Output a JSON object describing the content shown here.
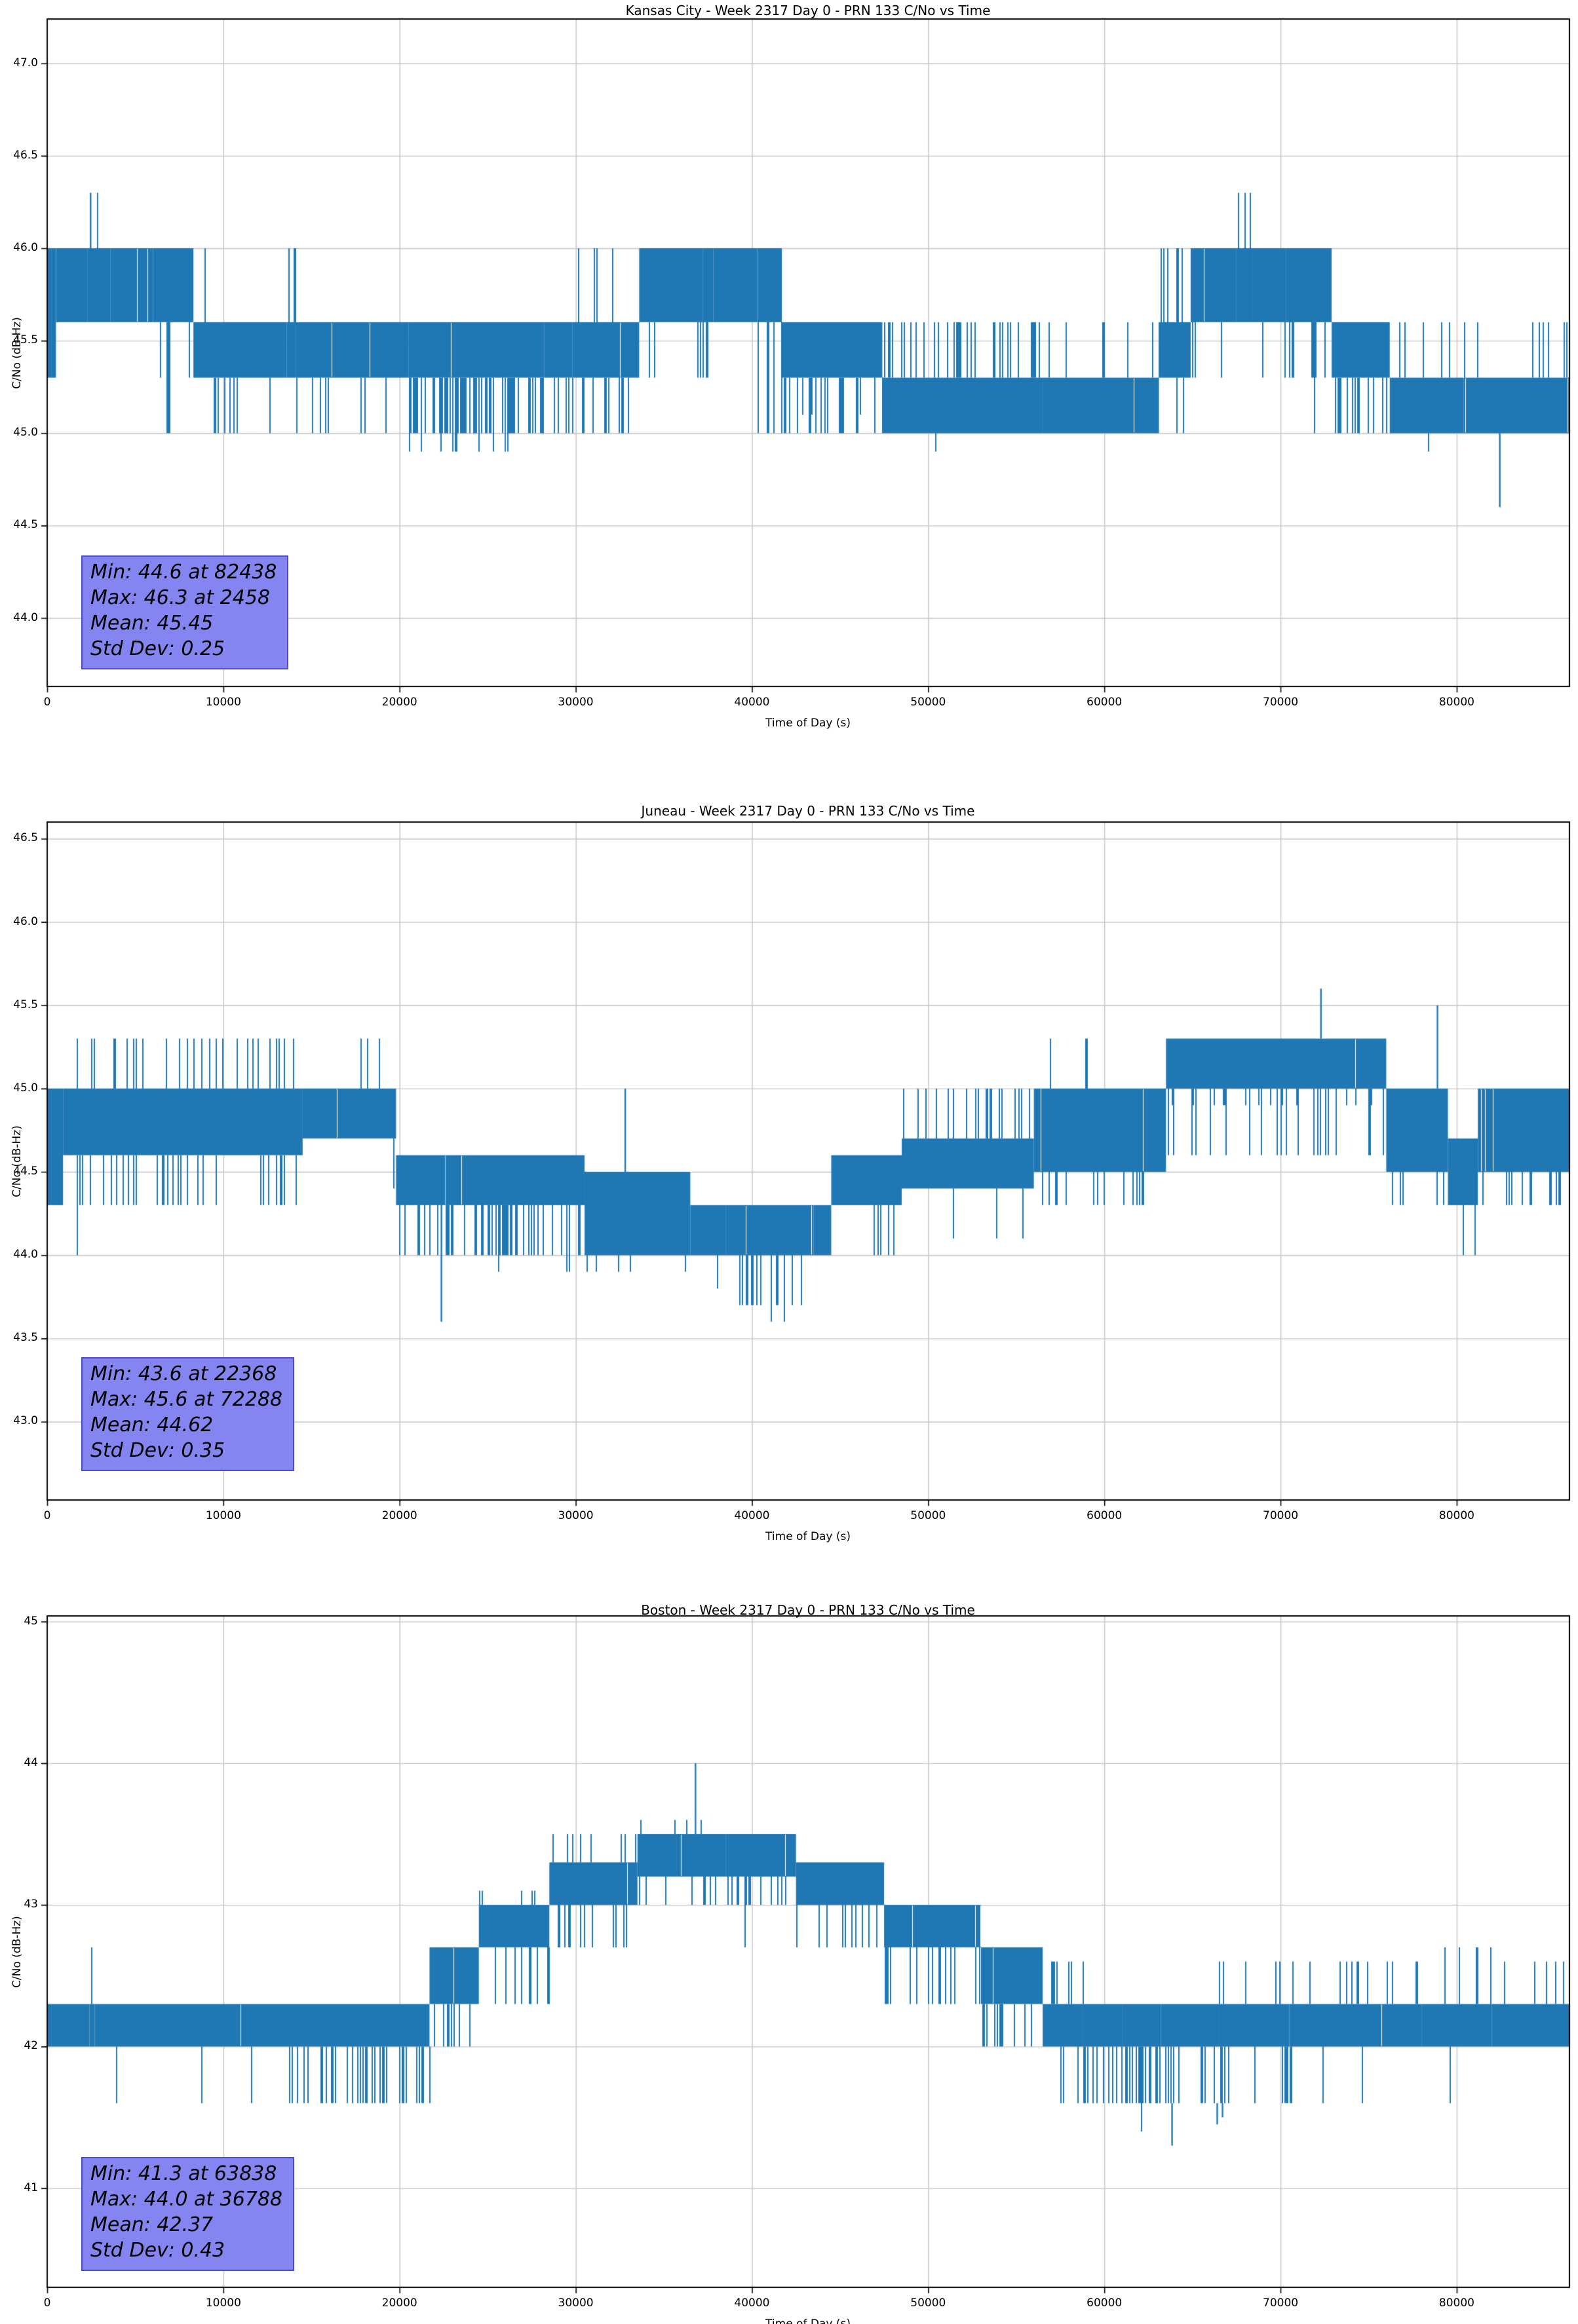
{
  "colors": {
    "line": "#1f77b4",
    "grid": "#c4c4c4",
    "spine": "#000000",
    "stats_box_bg": "#8585f2",
    "stats_box_border": "#4d4dc4",
    "text": "#000000"
  },
  "chart_data": [
    {
      "type": "line",
      "title": "Kansas City - Week 2317 Day 0 - PRN 133 C/No vs Time",
      "xlabel": "Time of Day (s)",
      "ylabel": "C/No (dB-Hz)",
      "grid": true,
      "line_color": "#1f77b4",
      "xlim": [
        0,
        86400
      ],
      "ylim": [
        43.63,
        47.24
      ],
      "xticks": [
        0,
        10000,
        20000,
        30000,
        40000,
        50000,
        60000,
        70000,
        80000
      ],
      "xtick_labels": [
        "0",
        "10000",
        "20000",
        "30000",
        "40000",
        "50000",
        "60000",
        "70000",
        "80000"
      ],
      "yticks": [
        44.0,
        44.5,
        45.0,
        45.5,
        46.0,
        46.5,
        47.0
      ],
      "ytick_labels": [
        "44.0",
        "44.5",
        "45.0",
        "45.5",
        "46.0",
        "46.5",
        "47.0"
      ],
      "stats": {
        "min": 44.6,
        "min_at": 82438,
        "max": 46.3,
        "max_at": 2458,
        "mean": 45.45,
        "std_dev": 0.25
      },
      "stats_lines": [
        "Min: 44.6 at 82438",
        "Max: 46.3 at 2458",
        "Mean: 45.45",
        "Std Dev: 0.25"
      ],
      "segments": [
        [
          0,
          500,
          45.3,
          46.0,
          []
        ],
        [
          500,
          2300,
          45.6,
          46.0,
          [
            [
              45.3,
              0.06
            ]
          ]
        ],
        [
          2300,
          3600,
          45.6,
          46.0,
          [
            [
              46.3,
              0.06
            ],
            [
              45.3,
              0.06
            ]
          ]
        ],
        [
          3600,
          6000,
          45.6,
          46.0,
          [
            [
              45.3,
              0.06
            ]
          ]
        ],
        [
          6000,
          8300,
          45.6,
          46.0,
          [
            [
              45.3,
              0.2
            ],
            [
              45.0,
              0.05
            ]
          ]
        ],
        [
          8300,
          10600,
          45.3,
          45.6,
          [
            [
              45.0,
              0.28
            ],
            [
              46.0,
              0.01
            ]
          ]
        ],
        [
          10600,
          13600,
          45.3,
          45.6,
          [
            [
              45.0,
              0.07
            ]
          ]
        ],
        [
          13600,
          14100,
          45.3,
          45.6,
          [
            [
              46.0,
              0.12
            ]
          ]
        ],
        [
          14100,
          20500,
          45.3,
          45.6,
          [
            [
              45.0,
              0.07
            ]
          ]
        ],
        [
          20500,
          28200,
          45.3,
          45.6,
          [
            [
              45.0,
              0.4
            ],
            [
              44.9,
              0.04
            ]
          ]
        ],
        [
          28200,
          29800,
          45.3,
          45.6,
          [
            [
              45.0,
              0.14
            ]
          ]
        ],
        [
          29800,
          33600,
          45.3,
          45.6,
          [
            [
              46.0,
              0.11
            ],
            [
              45.0,
              0.14
            ]
          ]
        ],
        [
          33600,
          37200,
          45.6,
          46.0,
          [
            [
              45.3,
              0.12
            ]
          ]
        ],
        [
          37200,
          37800,
          45.6,
          46.0,
          [
            [
              46.3,
              0.12
            ],
            [
              45.3,
              0.1
            ]
          ]
        ],
        [
          37800,
          40300,
          45.6,
          46.0,
          [
            [
              45.3,
              0.14
            ],
            [
              45.0,
              0.04
            ]
          ]
        ],
        [
          40300,
          41700,
          45.6,
          46.0,
          [
            [
              45.0,
              0.32
            ]
          ]
        ],
        [
          41700,
          47400,
          45.3,
          45.6,
          [
            [
              45.0,
              0.2
            ],
            [
              45.1,
              0.1
            ]
          ]
        ],
        [
          47400,
          56500,
          45.0,
          45.3,
          [
            [
              45.6,
              0.28
            ],
            [
              44.9,
              0.02
            ]
          ]
        ],
        [
          56500,
          63100,
          45.0,
          45.3,
          [
            [
              45.6,
              0.08
            ]
          ]
        ],
        [
          63100,
          64900,
          45.3,
          45.6,
          [
            [
              46.0,
              0.2
            ],
            [
              45.0,
              0.12
            ]
          ]
        ],
        [
          64900,
          67500,
          45.6,
          46.0,
          [
            [
              45.3,
              0.1
            ]
          ]
        ],
        [
          67500,
          68400,
          45.6,
          46.0,
          [
            [
              46.3,
              0.14
            ],
            [
              45.3,
              0.08
            ]
          ]
        ],
        [
          68400,
          70300,
          45.6,
          46.0,
          [
            [
              45.3,
              0.12
            ]
          ]
        ],
        [
          70300,
          72900,
          45.6,
          46.0,
          [
            [
              45.3,
              0.3
            ],
            [
              45.0,
              0.05
            ]
          ]
        ],
        [
          72900,
          76200,
          45.3,
          45.6,
          [
            [
              45.0,
              0.3
            ],
            [
              46.0,
              0.04
            ]
          ]
        ],
        [
          76200,
          80400,
          45.0,
          45.3,
          [
            [
              45.6,
              0.14
            ],
            [
              44.9,
              0.02
            ]
          ]
        ],
        [
          80400,
          86400,
          45.0,
          45.3,
          [
            [
              45.6,
              0.16
            ]
          ]
        ]
      ],
      "events": [
        [
          2458,
          46.0,
          46.3
        ],
        [
          82438,
          45.0,
          44.6
        ]
      ]
    },
    {
      "type": "line",
      "title": "Juneau - Week 2317 Day 0 - PRN 133 C/No vs Time",
      "xlabel": "Time of Day (s)",
      "ylabel": "C/No (dB-Hz)",
      "grid": true,
      "line_color": "#1f77b4",
      "xlim": [
        0,
        86400
      ],
      "ylim": [
        42.53,
        46.6
      ],
      "xticks": [
        0,
        10000,
        20000,
        30000,
        40000,
        50000,
        60000,
        70000,
        80000
      ],
      "xtick_labels": [
        "0",
        "10000",
        "20000",
        "30000",
        "40000",
        "50000",
        "60000",
        "70000",
        "80000"
      ],
      "yticks": [
        43.0,
        43.5,
        44.0,
        44.5,
        45.0,
        45.5,
        46.0,
        46.5
      ],
      "ytick_labels": [
        "43.0",
        "43.5",
        "44.0",
        "44.5",
        "45.0",
        "45.5",
        "46.0",
        "46.5"
      ],
      "stats": {
        "min": 43.6,
        "min_at": 22368,
        "max": 45.6,
        "max_at": 72288,
        "mean": 44.62,
        "std_dev": 0.35
      },
      "stats_lines": [
        "Min: 43.6 at 22368",
        "Max: 45.6 at 72288",
        "Mean: 44.62",
        "Std Dev: 0.35"
      ],
      "segments": [
        [
          0,
          900,
          44.3,
          45.0,
          []
        ],
        [
          900,
          14500,
          44.6,
          45.0,
          [
            [
              45.3,
              0.12
            ],
            [
              44.3,
              0.18
            ],
            [
              44.0,
              0.012
            ]
          ]
        ],
        [
          14500,
          19800,
          44.7,
          45.0,
          [
            [
              44.4,
              0.07
            ],
            [
              45.3,
              0.03
            ]
          ]
        ],
        [
          19800,
          22600,
          44.3,
          44.6,
          [
            [
              44.0,
              0.2
            ]
          ]
        ],
        [
          22600,
          30500,
          44.3,
          44.6,
          [
            [
              44.0,
              0.32
            ],
            [
              43.9,
              0.03
            ]
          ]
        ],
        [
          30500,
          36500,
          44.0,
          44.5,
          [
            [
              43.9,
              0.06
            ]
          ]
        ],
        [
          36500,
          38500,
          44.0,
          44.3,
          [
            [
              43.8,
              0.1
            ]
          ]
        ],
        [
          38500,
          43500,
          44.0,
          44.3,
          [
            [
              43.7,
              0.24
            ],
            [
              43.6,
              0.05
            ]
          ]
        ],
        [
          43500,
          44500,
          44.0,
          44.3,
          [
            [
              43.8,
              0.1
            ]
          ]
        ],
        [
          44500,
          48500,
          44.3,
          44.6,
          [
            [
              44.0,
              0.2
            ],
            [
              44.9,
              0.04
            ]
          ]
        ],
        [
          48500,
          56000,
          44.4,
          44.7,
          [
            [
              45.0,
              0.16
            ],
            [
              44.1,
              0.06
            ]
          ]
        ],
        [
          56000,
          63500,
          44.5,
          45.0,
          [
            [
              44.3,
              0.14
            ],
            [
              45.3,
              0.05
            ]
          ]
        ],
        [
          63500,
          76000,
          45.0,
          45.3,
          [
            [
              44.6,
              0.1
            ],
            [
              44.9,
              0.07
            ]
          ]
        ],
        [
          76000,
          79500,
          44.5,
          45.0,
          [
            [
              44.3,
              0.18
            ]
          ]
        ],
        [
          79500,
          81200,
          44.3,
          44.7,
          [
            [
              44.0,
              0.03
            ]
          ]
        ],
        [
          81200,
          86400,
          44.5,
          45.0,
          [
            [
              44.3,
              0.18
            ]
          ]
        ]
      ],
      "events": [
        [
          22368,
          44.3,
          43.6
        ],
        [
          32800,
          44.5,
          45.0
        ],
        [
          72288,
          45.3,
          45.6
        ],
        [
          78900,
          45.0,
          45.5
        ]
      ]
    },
    {
      "type": "line",
      "title": "Boston - Week 2317 Day 0 - PRN 133 C/No vs Time",
      "xlabel": "Time of Day (s)",
      "ylabel": "C/No (dB-Hz)",
      "grid": true,
      "line_color": "#1f77b4",
      "xlim": [
        0,
        86400
      ],
      "ylim": [
        40.3,
        45.04
      ],
      "xticks": [
        0,
        10000,
        20000,
        30000,
        40000,
        50000,
        60000,
        70000,
        80000
      ],
      "xtick_labels": [
        "0",
        "10000",
        "20000",
        "30000",
        "40000",
        "50000",
        "60000",
        "70000",
        "80000"
      ],
      "yticks": [
        41,
        42,
        43,
        44,
        45
      ],
      "ytick_labels": [
        "41",
        "42",
        "43",
        "44",
        "45"
      ],
      "stats": {
        "min": 41.3,
        "min_at": 63838,
        "max": 44.0,
        "max_at": 36788,
        "mean": 42.37,
        "std_dev": 0.43
      },
      "stats_lines": [
        "Min: 41.3 at 63838",
        "Max: 44.0 at 36788",
        "Mean: 42.37",
        "Std Dev: 0.43"
      ],
      "segments": [
        [
          0,
          2400,
          42.0,
          42.3,
          [
            [
              41.6,
              0.02
            ]
          ]
        ],
        [
          2400,
          2700,
          42.0,
          42.3,
          [
            [
              42.7,
              0.1
            ]
          ]
        ],
        [
          2700,
          13500,
          42.0,
          42.3,
          [
            [
              41.6,
              0.025
            ]
          ]
        ],
        [
          13500,
          21700,
          42.0,
          42.3,
          [
            [
              41.6,
              0.32
            ]
          ]
        ],
        [
          21700,
          24500,
          42.3,
          42.7,
          [
            [
              42.0,
              0.22
            ],
            [
              41.9,
              0.03
            ]
          ]
        ],
        [
          24500,
          28500,
          42.7,
          43.0,
          [
            [
              42.3,
              0.2
            ],
            [
              43.1,
              0.06
            ]
          ]
        ],
        [
          28500,
          33500,
          43.0,
          43.3,
          [
            [
              42.7,
              0.16
            ],
            [
              43.5,
              0.1
            ]
          ]
        ],
        [
          33500,
          38500,
          43.2,
          43.5,
          [
            [
              43.6,
              0.14
            ],
            [
              43.0,
              0.12
            ]
          ]
        ],
        [
          38500,
          42500,
          43.2,
          43.5,
          [
            [
              42.7,
              0.07
            ],
            [
              43.0,
              0.16
            ]
          ]
        ],
        [
          42500,
          47500,
          43.0,
          43.3,
          [
            [
              42.7,
              0.14
            ],
            [
              43.6,
              0.025
            ]
          ]
        ],
        [
          47500,
          53000,
          42.7,
          43.0,
          [
            [
              42.3,
              0.17
            ]
          ]
        ],
        [
          53000,
          56500,
          42.3,
          42.7,
          [
            [
              42.0,
              0.2
            ]
          ]
        ],
        [
          56500,
          58800,
          42.0,
          42.3,
          [
            [
              42.6,
              0.22
            ],
            [
              41.6,
              0.12
            ]
          ]
        ],
        [
          58800,
          61000,
          42.0,
          42.3,
          [
            [
              41.6,
              0.38
            ]
          ]
        ],
        [
          61000,
          63200,
          42.0,
          42.3,
          [
            [
              41.6,
              0.6
            ],
            [
              41.4,
              0.04
            ]
          ]
        ],
        [
          63200,
          66500,
          42.0,
          42.3,
          [
            [
              41.6,
              0.32
            ],
            [
              41.4,
              0.02
            ]
          ]
        ],
        [
          66500,
          70500,
          42.0,
          42.3,
          [
            [
              41.6,
              0.16
            ],
            [
              42.6,
              0.11
            ]
          ]
        ],
        [
          70500,
          78000,
          42.0,
          42.3,
          [
            [
              41.6,
              0.07
            ],
            [
              42.6,
              0.09
            ]
          ]
        ],
        [
          78000,
          82000,
          42.0,
          42.3,
          [
            [
              42.7,
              0.06
            ],
            [
              41.6,
              0.05
            ]
          ]
        ],
        [
          82000,
          86400,
          42.0,
          42.3,
          [
            [
              41.6,
              0.05
            ],
            [
              42.6,
              0.07
            ]
          ]
        ]
      ],
      "events": [
        [
          36788,
          43.5,
          44.0
        ],
        [
          63838,
          41.6,
          41.3
        ],
        [
          66400,
          41.6,
          41.45
        ],
        [
          66700,
          41.6,
          41.5
        ]
      ]
    }
  ]
}
